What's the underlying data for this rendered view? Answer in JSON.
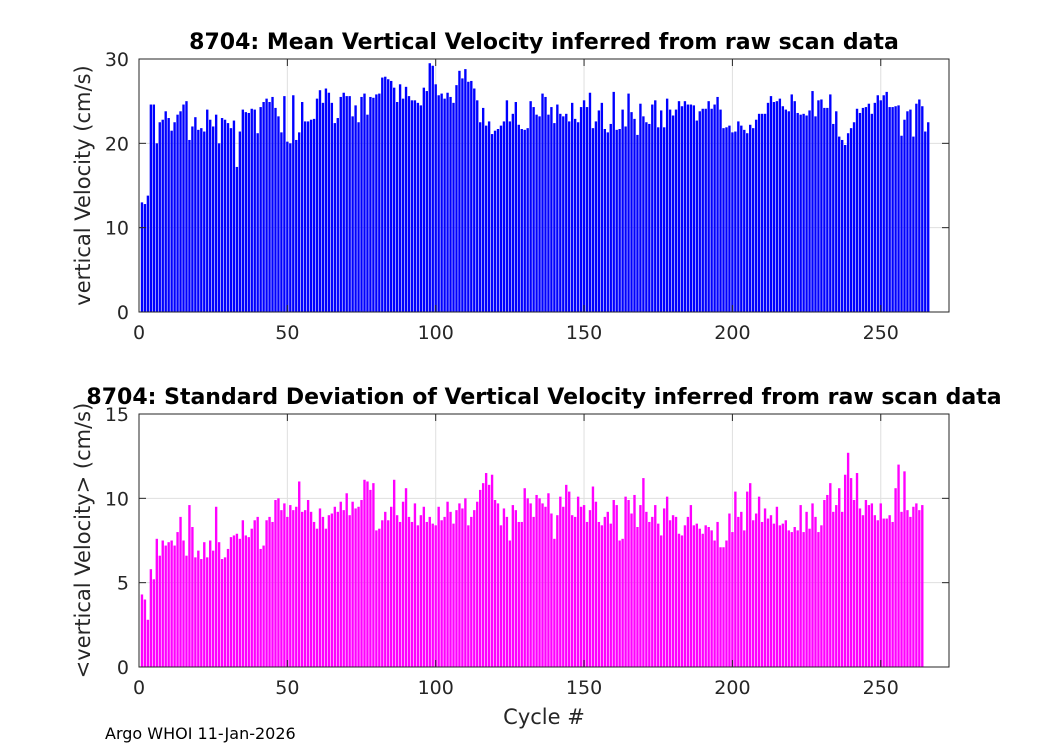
{
  "footer": "Argo WHOI 11-Jan-2026",
  "chart_data": [
    {
      "type": "bar",
      "title": "8704: Mean Vertical Velocity inferred from raw scan data",
      "xlabel": "",
      "ylabel": "vertical Velocity (cm/s)",
      "xlim": [
        0,
        273
      ],
      "ylim": [
        0,
        30
      ],
      "xticks": [
        0,
        50,
        100,
        150,
        200,
        250
      ],
      "yticks": [
        0,
        10,
        20,
        30
      ],
      "grid": true,
      "color": "#0000ff",
      "x_start": 1,
      "values": [
        13.0,
        12.8,
        13.8,
        24.6,
        24.6,
        20.0,
        22.5,
        22.8,
        23.8,
        23.0,
        21.5,
        22.5,
        23.4,
        23.8,
        24.6,
        25.0,
        20.4,
        22.0,
        23.1,
        21.6,
        21.8,
        21.4,
        24.0,
        22.8,
        22.0,
        23.4,
        20.0,
        23.0,
        22.8,
        22.4,
        21.8,
        22.7,
        17.2,
        21.4,
        24.0,
        23.7,
        23.6,
        24.1,
        24.0,
        21.2,
        24.3,
        24.9,
        25.3,
        24.9,
        25.5,
        24.2,
        23.2,
        21.3,
        25.6,
        20.2,
        20.0,
        25.7,
        20.4,
        21.3,
        24.9,
        22.6,
        22.6,
        22.8,
        22.9,
        25.3,
        26.3,
        24.8,
        26.5,
        26.0,
        24.8,
        22.4,
        23.0,
        25.5,
        26.0,
        25.6,
        25.6,
        23.2,
        24.5,
        22.5,
        25.5,
        25.9,
        23.4,
        25.5,
        25.4,
        25.8,
        25.9,
        27.8,
        27.9,
        27.6,
        27.4,
        26.6,
        24.9,
        27.0,
        25.3,
        26.7,
        25.6,
        25.1,
        25.1,
        24.8,
        24.5,
        26.6,
        26.2,
        29.5,
        29.2,
        27.0,
        25.7,
        25.9,
        25.3,
        26.0,
        25.5,
        24.8,
        26.9,
        28.6,
        27.7,
        28.8,
        27.3,
        27.4,
        26.5,
        25.1,
        22.5,
        24.2,
        22.1,
        22.6,
        21.1,
        21.5,
        21.7,
        22.1,
        22.6,
        25.1,
        22.6,
        23.5,
        24.9,
        22.2,
        21.7,
        21.6,
        21.8,
        25.0,
        24.3,
        23.4,
        23.2,
        25.9,
        25.5,
        23.4,
        24.3,
        22.4,
        24.6,
        23.5,
        23.2,
        23.5,
        22.6,
        24.8,
        22.9,
        22.5,
        24.3,
        25.1,
        24.3,
        26.0,
        21.8,
        22.6,
        23.9,
        24.8,
        21.7,
        21.3,
        22.3,
        26.1,
        21.6,
        21.7,
        24.0,
        22.0,
        25.9,
        23.7,
        22.9,
        21.0,
        24.7,
        23.2,
        22.5,
        22.3,
        24.6,
        25.1,
        21.9,
        23.9,
        21.9,
        25.3,
        24.0,
        23.3,
        24.0,
        25.0,
        24.4,
        25.0,
        24.6,
        24.6,
        24.5,
        22.7,
        23.8,
        24.1,
        24.1,
        25.0,
        24.1,
        24.6,
        25.5,
        24.0,
        21.8,
        21.9,
        22.1,
        21.3,
        21.4,
        22.6,
        22.1,
        21.6,
        21.2,
        22.2,
        21.8,
        22.8,
        23.5,
        23.5,
        23.5,
        24.8,
        25.6,
        24.9,
        25.0,
        25.3,
        24.4,
        24.0,
        23.8,
        25.8,
        25.0,
        23.6,
        23.4,
        23.5,
        23.3,
        23.9,
        26.2,
        23.2,
        25.1,
        25.2,
        24.2,
        24.2,
        25.8,
        22.3,
        23.8,
        20.8,
        20.4,
        19.8,
        21.2,
        21.8,
        22.5,
        24.1,
        23.6,
        24.2,
        24.3,
        24.7,
        23.5,
        24.8,
        25.7,
        25.1,
        25.7,
        26.1,
        24.3,
        24.3,
        24.4,
        24.5,
        20.9,
        22.8,
        23.8,
        24.0,
        20.8,
        24.7,
        25.2,
        24.4,
        21.4,
        22.5
      ]
    },
    {
      "type": "bar",
      "title": "8704: Standard Deviation of Vertical Velocity inferred from raw scan data",
      "xlabel": "Cycle #",
      "ylabel": "<vertical Velocity> (cm/s)",
      "xlim": [
        0,
        273
      ],
      "ylim": [
        0,
        15
      ],
      "xticks": [
        0,
        50,
        100,
        150,
        200,
        250
      ],
      "yticks": [
        0,
        5,
        10,
        15
      ],
      "grid": true,
      "color": "#ff00ff",
      "x_start": 1,
      "values": [
        4.3,
        4.0,
        2.8,
        5.8,
        5.2,
        7.6,
        6.6,
        7.5,
        7.2,
        7.4,
        7.5,
        7.2,
        8.0,
        8.9,
        7.5,
        6.6,
        9.6,
        8.3,
        6.5,
        6.9,
        6.4,
        7.4,
        6.5,
        7.5,
        6.9,
        9.5,
        7.4,
        6.4,
        6.5,
        7.0,
        7.7,
        7.8,
        7.9,
        7.6,
        8.7,
        7.8,
        7.7,
        8.2,
        8.7,
        8.9,
        7.0,
        7.2,
        8.7,
        8.9,
        8.6,
        9.9,
        10.0,
        9.3,
        9.7,
        8.9,
        9.6,
        9.3,
        9.5,
        11.0,
        9.2,
        9.3,
        9.9,
        9.2,
        8.6,
        8.2,
        9.4,
        8.9,
        8.2,
        9.0,
        9.1,
        9.5,
        9.2,
        9.8,
        9.3,
        10.3,
        9.0,
        9.8,
        9.4,
        9.5,
        9.9,
        11.1,
        11.0,
        10.5,
        10.9,
        8.1,
        8.2,
        8.7,
        9.2,
        8.7,
        9.5,
        11.1,
        9.0,
        8.6,
        9.8,
        10.6,
        8.9,
        8.6,
        9.7,
        8.4,
        9.0,
        9.5,
        8.6,
        8.9,
        8.5,
        8.4,
        9.5,
        8.7,
        8.9,
        9.8,
        9.2,
        8.5,
        9.3,
        9.7,
        9.4,
        10.0,
        8.4,
        8.9,
        9.3,
        9.8,
        10.5,
        10.9,
        11.5,
        10.8,
        11.4,
        9.9,
        9.7,
        8.4,
        9.4,
        8.9,
        7.5,
        9.6,
        9.3,
        8.6,
        8.6,
        10.6,
        10.0,
        9.7,
        8.9,
        10.2,
        10.0,
        9.7,
        9.5,
        10.3,
        9.1,
        7.6,
        9.0,
        10.1,
        9.5,
        10.8,
        10.4,
        9.0,
        8.9,
        10.1,
        9.5,
        9.6,
        8.6,
        9.3,
        10.7,
        9.8,
        8.6,
        8.4,
        8.9,
        9.2,
        8.5,
        9.9,
        9.6,
        7.5,
        7.6,
        10.1,
        9.9,
        9.1,
        10.2,
        8.3,
        9.6,
        11.2,
        9.2,
        8.6,
        8.9,
        9.6,
        8.5,
        7.8,
        9.4,
        10.1,
        8.7,
        9.0,
        8.9,
        7.9,
        7.8,
        8.4,
        8.9,
        9.6,
        8.4,
        8.5,
        8.2,
        7.9,
        8.4,
        8.3,
        8.1,
        7.5,
        8.6,
        7.1,
        7.1,
        7.5,
        9.1,
        8.0,
        10.4,
        8.9,
        9.2,
        8.1,
        10.4,
        10.9,
        8.7,
        9.1,
        10.1,
        8.6,
        9.4,
        8.8,
        9.0,
        8.5,
        9.5,
        8.4,
        8.5,
        8.7,
        8.1,
        8.0,
        8.3,
        8.1,
        9.6,
        8.0,
        9.2,
        8.2,
        9.7,
        8.9,
        8.0,
        8.4,
        9.9,
        10.2,
        10.9,
        9.2,
        9.6,
        10.6,
        9.2,
        11.4,
        12.7,
        11.2,
        9.9,
        11.5,
        9.4,
        9.0,
        9.9,
        9.6,
        9.7,
        9.0,
        8.7,
        9.7,
        8.8,
        8.8,
        9.0,
        8.6,
        10.6,
        12.0,
        9.2,
        11.6,
        9.3,
        8.9,
        9.5,
        9.7,
        9.3,
        9.6
      ]
    }
  ]
}
